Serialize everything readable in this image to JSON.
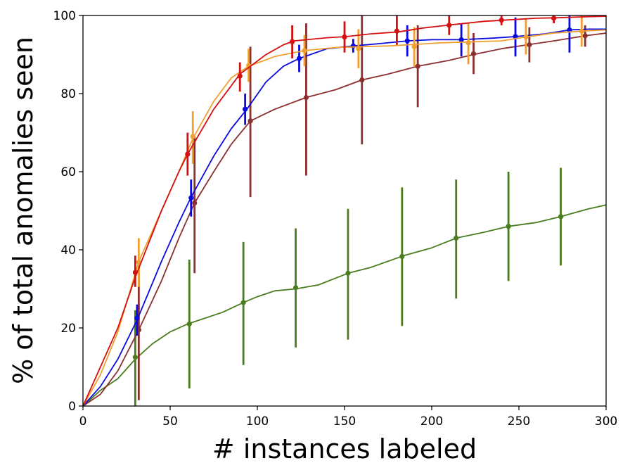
{
  "chart_data": {
    "type": "line",
    "title": "",
    "xlabel": "# instances labeled",
    "ylabel": "% of total anomalies seen",
    "xlim": [
      0,
      300
    ],
    "ylim": [
      0,
      100
    ],
    "xticks": [
      "0",
      "50",
      "100",
      "150",
      "200",
      "250",
      "300"
    ],
    "yticks": [
      "0",
      "20",
      "40",
      "60",
      "80",
      "100"
    ],
    "grid": false,
    "legend": "none",
    "series": [
      {
        "name": "green",
        "color": "#4a7d1e",
        "x": [
          0,
          10,
          20,
          30,
          40,
          50,
          60,
          70,
          80,
          92,
          100,
          110,
          122,
          135,
          152,
          165,
          184,
          200,
          214,
          230,
          244,
          260,
          274,
          290,
          300
        ],
        "values": [
          0,
          4,
          7,
          12,
          16,
          19,
          21,
          22.5,
          24,
          26.5,
          28,
          29.5,
          30,
          31,
          34,
          35.5,
          38.5,
          40.5,
          43,
          44.5,
          46,
          47,
          48.5,
          50.5,
          51.5
        ],
        "errorbars": [
          {
            "x": 30,
            "y": 12.5,
            "lo": 0,
            "hi": 24.5
          },
          {
            "x": 61,
            "y": 21,
            "lo": 4.5,
            "hi": 37.5
          },
          {
            "x": 92,
            "y": 26.5,
            "lo": 10.5,
            "hi": 42
          },
          {
            "x": 122,
            "y": 30.3,
            "lo": 15,
            "hi": 45.5
          },
          {
            "x": 152,
            "y": 34,
            "lo": 17,
            "hi": 50.5
          },
          {
            "x": 183,
            "y": 38.3,
            "lo": 20.5,
            "hi": 56
          },
          {
            "x": 214,
            "y": 43,
            "lo": 27.5,
            "hi": 58
          },
          {
            "x": 244,
            "y": 46,
            "lo": 32,
            "hi": 60
          },
          {
            "x": 274,
            "y": 48.5,
            "lo": 36,
            "hi": 61
          }
        ]
      },
      {
        "name": "brown",
        "color": "#8b2f2f",
        "x": [
          0,
          10,
          20,
          32,
          45,
          55,
          64,
          75,
          85,
          96,
          110,
          128,
          145,
          160,
          175,
          192,
          210,
          224,
          240,
          255,
          270,
          288,
          300
        ],
        "values": [
          0,
          3,
          9,
          19.5,
          32,
          43,
          52,
          60,
          67,
          73,
          76,
          79,
          81,
          83.5,
          85,
          87,
          88.5,
          90,
          91.5,
          92.5,
          93.5,
          94.8,
          95.5
        ],
        "errorbars": [
          {
            "x": 32,
            "y": 19.5,
            "lo": 1.5,
            "hi": 37
          },
          {
            "x": 64,
            "y": 52,
            "lo": 34,
            "hi": 69
          },
          {
            "x": 96,
            "y": 73,
            "lo": 53.5,
            "hi": 92
          },
          {
            "x": 128,
            "y": 79,
            "lo": 59,
            "hi": 98
          },
          {
            "x": 160,
            "y": 83.5,
            "lo": 67,
            "hi": 100
          },
          {
            "x": 192,
            "y": 87,
            "lo": 76.5,
            "hi": 97.5
          },
          {
            "x": 224,
            "y": 90.2,
            "lo": 85,
            "hi": 95.5
          },
          {
            "x": 256,
            "y": 92.5,
            "lo": 88,
            "hi": 97
          },
          {
            "x": 288,
            "y": 94.8,
            "lo": 92,
            "hi": 97.5
          }
        ]
      },
      {
        "name": "blue",
        "color": "#0a0ae0",
        "x": [
          0,
          10,
          20,
          31,
          45,
          55,
          62,
          75,
          85,
          94,
          105,
          115,
          124,
          140,
          155,
          170,
          186,
          200,
          217,
          235,
          248,
          265,
          279,
          290,
          300
        ],
        "values": [
          0,
          5,
          12,
          22,
          37,
          47,
          53.5,
          64,
          71,
          76,
          83,
          87,
          89,
          91.5,
          92.2,
          92.8,
          93.5,
          93.8,
          93.8,
          94.2,
          94.6,
          95.3,
          96.3,
          96.5,
          96.5
        ],
        "errorbars": [
          {
            "x": 31,
            "y": 22.5,
            "lo": 18,
            "hi": 26
          },
          {
            "x": 62,
            "y": 53.3,
            "lo": 48.5,
            "hi": 58
          },
          {
            "x": 93,
            "y": 76,
            "lo": 72,
            "hi": 80
          },
          {
            "x": 124,
            "y": 89,
            "lo": 85.5,
            "hi": 92.5
          },
          {
            "x": 155,
            "y": 92.2,
            "lo": 90.5,
            "hi": 94
          },
          {
            "x": 186,
            "y": 93.5,
            "lo": 89.5,
            "hi": 97.5
          },
          {
            "x": 217,
            "y": 93.8,
            "lo": 89.5,
            "hi": 98
          },
          {
            "x": 248,
            "y": 94.6,
            "lo": 89.5,
            "hi": 99.5
          },
          {
            "x": 279,
            "y": 96.3,
            "lo": 90.5,
            "hi": 100
          }
        ]
      },
      {
        "name": "orange",
        "color": "#f0a030",
        "x": [
          0,
          10,
          20,
          32,
          45,
          55,
          63,
          75,
          85,
          95,
          110,
          127,
          145,
          158,
          175,
          190,
          205,
          220,
          240,
          254,
          270,
          286,
          300
        ],
        "values": [
          0,
          8,
          19,
          37,
          50,
          60,
          68.5,
          78,
          84,
          87,
          89.5,
          91,
          91.8,
          92,
          92.2,
          92.6,
          93,
          93.2,
          93.5,
          94.5,
          95.5,
          96,
          96.3
        ],
        "errorbars": [
          {
            "x": 32,
            "y": 36.8,
            "lo": 30.5,
            "hi": 43
          },
          {
            "x": 63,
            "y": 69,
            "lo": 62,
            "hi": 75.5
          },
          {
            "x": 95,
            "y": 87.2,
            "lo": 83,
            "hi": 91.5
          },
          {
            "x": 127,
            "y": 91,
            "lo": 87,
            "hi": 95
          },
          {
            "x": 158,
            "y": 91.5,
            "lo": 86.5,
            "hi": 96.5
          },
          {
            "x": 190,
            "y": 92,
            "lo": 87,
            "hi": 97
          },
          {
            "x": 221,
            "y": 93,
            "lo": 87.5,
            "hi": 98
          },
          {
            "x": 254,
            "y": 94.5,
            "lo": 90,
            "hi": 99
          },
          {
            "x": 286,
            "y": 96,
            "lo": 92,
            "hi": 100
          }
        ]
      },
      {
        "name": "red",
        "color": "#d41010",
        "x": [
          0,
          10,
          20,
          30,
          45,
          55,
          60,
          75,
          85,
          90,
          105,
          115,
          121,
          140,
          151,
          165,
          181,
          195,
          211,
          230,
          241,
          260,
          271,
          290,
          300
        ],
        "values": [
          0,
          10,
          20,
          33,
          50,
          60,
          64.5,
          76,
          82,
          85,
          90,
          92.5,
          93.5,
          94.3,
          94.6,
          95.3,
          95.8,
          96.8,
          97.6,
          98.5,
          98.8,
          99.3,
          99.4,
          99.7,
          99.8
        ],
        "errorbars": [
          {
            "x": 30,
            "y": 34.2,
            "lo": 30.5,
            "hi": 38.5
          },
          {
            "x": 60,
            "y": 64.5,
            "lo": 59,
            "hi": 70
          },
          {
            "x": 90,
            "y": 84.5,
            "lo": 80.5,
            "hi": 88
          },
          {
            "x": 120,
            "y": 93.3,
            "lo": 89,
            "hi": 97.5
          },
          {
            "x": 150,
            "y": 94.5,
            "lo": 90.5,
            "hi": 98.5
          },
          {
            "x": 180,
            "y": 96,
            "lo": 92.5,
            "hi": 100
          },
          {
            "x": 210,
            "y": 97.5,
            "lo": 95,
            "hi": 100
          },
          {
            "x": 240,
            "y": 98.8,
            "lo": 97.5,
            "hi": 100
          },
          {
            "x": 270,
            "y": 99.3,
            "lo": 98,
            "hi": 100
          }
        ]
      }
    ]
  }
}
